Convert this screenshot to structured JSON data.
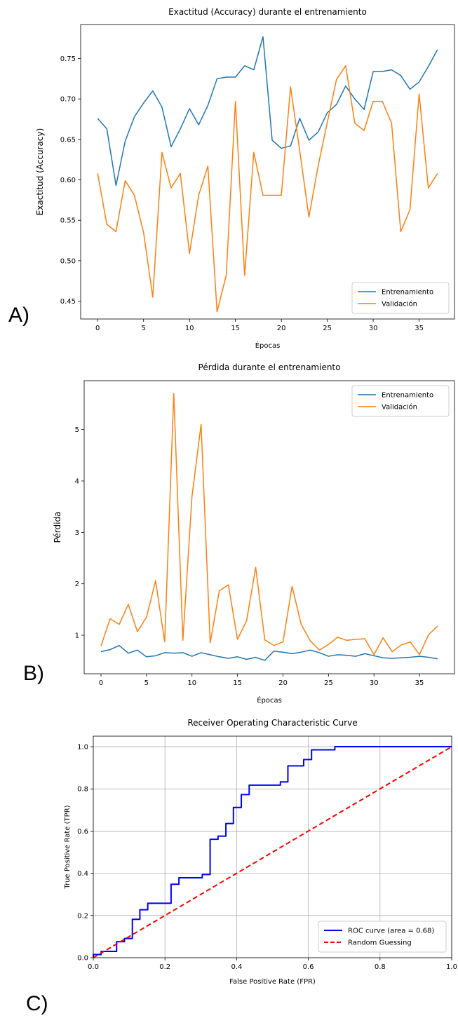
{
  "panels": {
    "a_label": "A)",
    "b_label": "B)",
    "c_label": "C)"
  },
  "chart_data": [
    {
      "id": "A",
      "type": "line",
      "title": "Exactitud (Accuracy) durante el entrenamiento",
      "xlabel": "Épocas",
      "ylabel": "Exactitud (Accuracy)",
      "xlim": [
        -1.85,
        38.85
      ],
      "ylim": [
        0.428,
        0.792
      ],
      "xticks": [
        0,
        5,
        10,
        15,
        20,
        25,
        30,
        35
      ],
      "yticks": [
        0.45,
        0.5,
        0.55,
        0.6,
        0.65,
        0.7,
        0.75
      ],
      "ytick_labels": [
        "0.45",
        "0.50",
        "0.55",
        "0.60",
        "0.65",
        "0.70",
        "0.75"
      ],
      "grid": false,
      "legend": "lower right",
      "x": [
        0,
        1,
        2,
        3,
        4,
        5,
        6,
        7,
        8,
        9,
        10,
        11,
        12,
        13,
        14,
        15,
        16,
        17,
        18,
        19,
        20,
        21,
        22,
        23,
        24,
        25,
        26,
        27,
        28,
        29,
        30,
        31,
        32,
        33,
        34,
        35,
        36,
        37
      ],
      "series": [
        {
          "name": "Entrenamiento",
          "color": "#1f77b4",
          "values": [
            0.676,
            0.663,
            0.593,
            0.648,
            0.678,
            0.695,
            0.71,
            0.69,
            0.641,
            0.663,
            0.688,
            0.668,
            0.692,
            0.725,
            0.727,
            0.727,
            0.741,
            0.736,
            0.777,
            0.649,
            0.639,
            0.642,
            0.676,
            0.649,
            0.659,
            0.683,
            0.693,
            0.716,
            0.7,
            0.687,
            0.734,
            0.734,
            0.736,
            0.729,
            0.712,
            0.721,
            0.74,
            0.761
          ]
        },
        {
          "name": "Validación",
          "color": "#ff7f0e",
          "values": [
            0.608,
            0.545,
            0.536,
            0.599,
            0.581,
            0.535,
            0.455,
            0.634,
            0.59,
            0.608,
            0.509,
            0.581,
            0.617,
            0.437,
            0.482,
            0.697,
            0.482,
            0.634,
            0.581,
            0.581,
            0.581,
            0.715,
            0.636,
            0.554,
            0.617,
            0.671,
            0.724,
            0.741,
            0.67,
            0.661,
            0.697,
            0.697,
            0.67,
            0.536,
            0.563,
            0.706,
            0.59,
            0.608
          ]
        }
      ]
    },
    {
      "id": "B",
      "type": "line",
      "title": "Pérdida durante el entrenamiento",
      "xlabel": "Épocas",
      "ylabel": "Pérdida",
      "xlim": [
        -1.85,
        38.85
      ],
      "ylim": [
        0.25,
        5.95
      ],
      "xticks": [
        0,
        5,
        10,
        15,
        20,
        25,
        30,
        35
      ],
      "yticks": [
        1,
        2,
        3,
        4,
        5
      ],
      "ytick_labels": [
        "1",
        "2",
        "3",
        "4",
        "5"
      ],
      "grid": false,
      "legend": "upper right",
      "x": [
        0,
        1,
        2,
        3,
        4,
        5,
        6,
        7,
        8,
        9,
        10,
        11,
        12,
        13,
        14,
        15,
        16,
        17,
        18,
        19,
        20,
        21,
        22,
        23,
        24,
        25,
        26,
        27,
        28,
        29,
        30,
        31,
        32,
        33,
        34,
        35,
        36,
        37
      ],
      "series": [
        {
          "name": "Entrenamiento",
          "color": "#1f77b4",
          "values": [
            0.68,
            0.72,
            0.8,
            0.65,
            0.71,
            0.58,
            0.6,
            0.66,
            0.65,
            0.66,
            0.59,
            0.66,
            0.62,
            0.58,
            0.55,
            0.58,
            0.53,
            0.57,
            0.51,
            0.69,
            0.67,
            0.64,
            0.67,
            0.71,
            0.66,
            0.59,
            0.62,
            0.61,
            0.59,
            0.64,
            0.6,
            0.56,
            0.55,
            0.56,
            0.57,
            0.59,
            0.57,
            0.54
          ]
        },
        {
          "name": "Validación",
          "color": "#ff7f0e",
          "values": [
            0.79,
            1.32,
            1.21,
            1.6,
            1.07,
            1.35,
            2.06,
            0.87,
            5.7,
            0.9,
            3.7,
            5.1,
            0.85,
            1.86,
            1.98,
            0.92,
            1.28,
            2.32,
            0.91,
            0.8,
            0.87,
            1.95,
            1.21,
            0.89,
            0.71,
            0.82,
            0.96,
            0.9,
            0.92,
            0.93,
            0.62,
            0.95,
            0.68,
            0.81,
            0.87,
            0.62,
            1.01,
            1.18
          ]
        }
      ]
    },
    {
      "id": "C",
      "type": "line",
      "title": "Receiver Operating Characteristic Curve",
      "xlabel": "False Positive Rate (FPR)",
      "ylabel": "True Positive Rate (TPR)",
      "xlim": [
        0.0,
        1.0
      ],
      "ylim": [
        0.0,
        1.05
      ],
      "xticks": [
        0.0,
        0.2,
        0.4,
        0.6,
        0.8,
        1.0
      ],
      "xtick_labels": [
        "0.0",
        "0.2",
        "0.4",
        "0.6",
        "0.8",
        "1.0"
      ],
      "yticks": [
        0.0,
        0.2,
        0.4,
        0.6,
        0.8,
        1.0
      ],
      "ytick_labels": [
        "0.0",
        "0.2",
        "0.4",
        "0.6",
        "0.8",
        "1.0"
      ],
      "grid": true,
      "legend": "lower right",
      "series": [
        {
          "name": "ROC curve (area = 0.68)",
          "color": "#0000ff",
          "style": "solid",
          "x": [
            0.0,
            0.0,
            0.022,
            0.022,
            0.065,
            0.065,
            0.087,
            0.087,
            0.109,
            0.109,
            0.13,
            0.13,
            0.152,
            0.152,
            0.217,
            0.217,
            0.239,
            0.239,
            0.304,
            0.304,
            0.326,
            0.326,
            0.348,
            0.348,
            0.37,
            0.37,
            0.391,
            0.391,
            0.413,
            0.413,
            0.435,
            0.435,
            0.522,
            0.522,
            0.543,
            0.543,
            0.587,
            0.587,
            0.609,
            0.609,
            0.674,
            0.674,
            1.0
          ],
          "y": [
            0.0,
            0.015,
            0.015,
            0.03,
            0.03,
            0.076,
            0.076,
            0.091,
            0.091,
            0.182,
            0.182,
            0.227,
            0.227,
            0.258,
            0.258,
            0.348,
            0.348,
            0.379,
            0.379,
            0.394,
            0.394,
            0.561,
            0.561,
            0.576,
            0.576,
            0.636,
            0.636,
            0.712,
            0.712,
            0.773,
            0.773,
            0.818,
            0.818,
            0.833,
            0.833,
            0.909,
            0.909,
            0.939,
            0.939,
            0.985,
            0.985,
            1.0,
            1.0
          ]
        },
        {
          "name": "Random Guessing",
          "color": "#ff0000",
          "style": "dashed",
          "x": [
            0.0,
            1.0
          ],
          "y": [
            0.0,
            1.0
          ]
        }
      ]
    }
  ]
}
